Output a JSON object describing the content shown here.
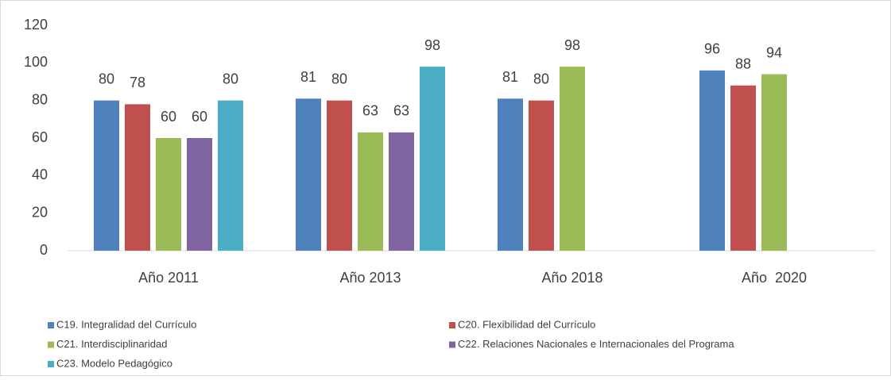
{
  "chart_data": {
    "type": "bar",
    "categories": [
      "Año 2011",
      "Año 2013",
      "Año 2018",
      "Año  2020"
    ],
    "series": [
      {
        "name": "C19. Integralidad del Currículo",
        "color": "#4f81bd",
        "values": [
          80,
          81,
          81,
          96
        ]
      },
      {
        "name": "C20. Flexibilidad del Currículo",
        "color": "#c0504d",
        "values": [
          78,
          80,
          80,
          88
        ]
      },
      {
        "name": "C21. Interdisciplinaridad",
        "color": "#9bbb59",
        "values": [
          60,
          63,
          98,
          94
        ]
      },
      {
        "name": "C22. Relaciones Nacionales e Internacionales del Programa",
        "color": "#8064a2",
        "values": [
          60,
          63,
          null,
          null
        ]
      },
      {
        "name": "C23. Modelo Pedagógico",
        "color": "#4bacc6",
        "values": [
          80,
          98,
          null,
          null
        ]
      }
    ],
    "ylim": [
      0,
      120
    ],
    "yticks": [
      0,
      20,
      40,
      60,
      80,
      100,
      120
    ],
    "grid": false,
    "legend": "bottom"
  }
}
